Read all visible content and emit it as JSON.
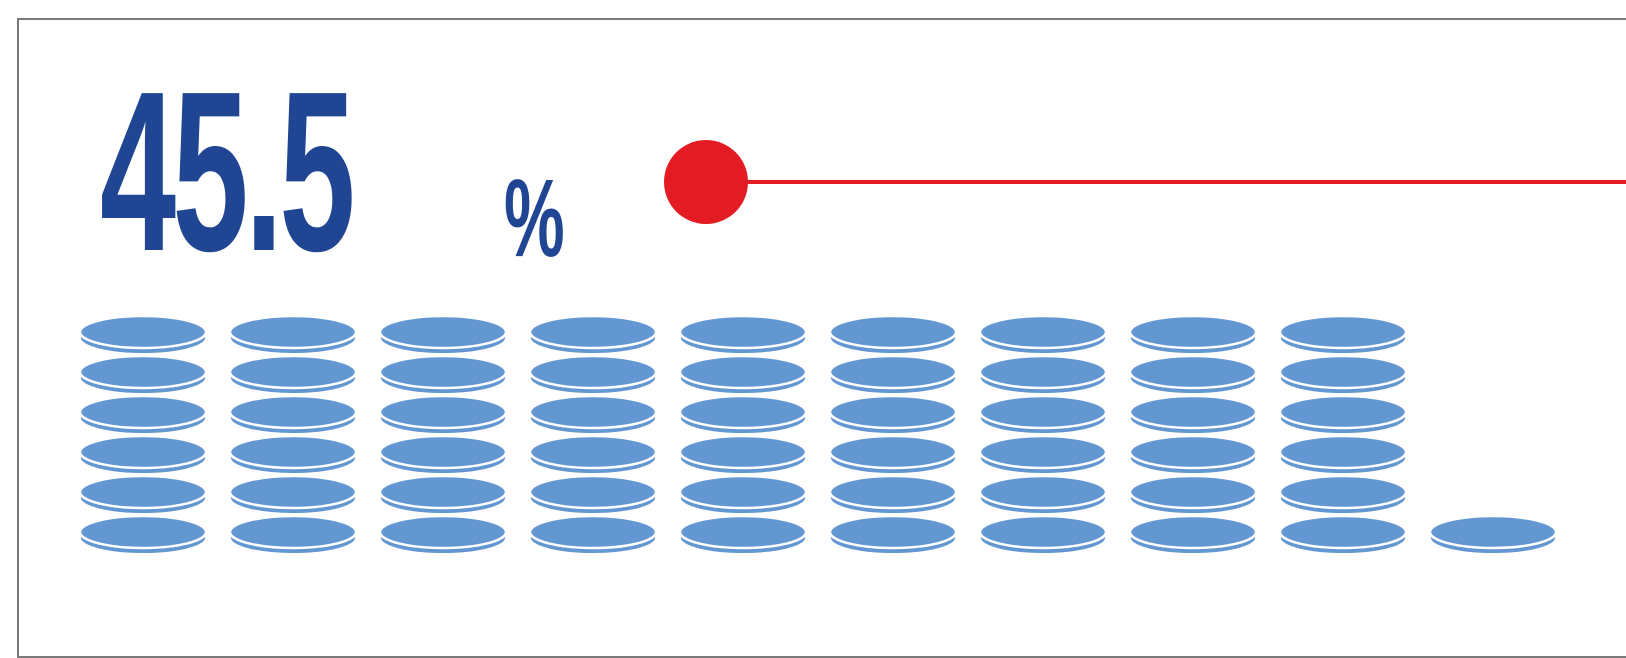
{
  "stat": {
    "value": "45.5",
    "unit": "%",
    "fraction": 0.455
  },
  "coins": {
    "color": "#6297d1",
    "stack_heights": [
      6,
      6,
      6,
      6,
      6,
      6,
      6,
      6,
      6,
      1
    ]
  },
  "colors": {
    "stat_text": "#1f4593",
    "leader": "#e31b23",
    "frame": "#7a7a7a"
  }
}
